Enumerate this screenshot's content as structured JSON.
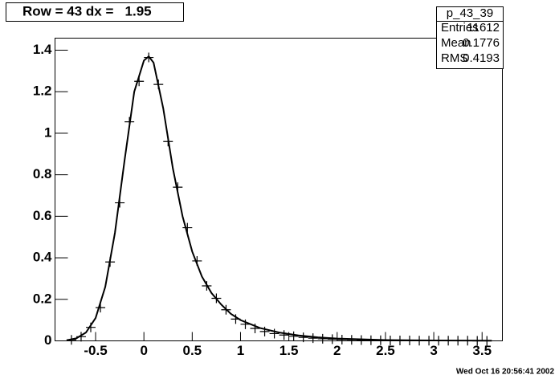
{
  "chart_data": {
    "type": "scatter",
    "title": "Row = 43 dx =   1.95",
    "x": [
      -0.75,
      -0.65,
      -0.55,
      -0.45,
      -0.35,
      -0.25,
      -0.15,
      -0.05,
      0.05,
      0.15,
      0.25,
      0.35,
      0.45,
      0.55,
      0.65,
      0.75,
      0.85,
      0.95,
      1.05,
      1.15,
      1.25,
      1.35,
      1.45,
      1.55,
      1.65,
      1.75,
      1.85,
      1.95,
      2.05,
      2.15,
      2.25,
      2.35,
      2.45,
      2.55,
      2.65,
      2.75,
      2.85,
      2.95,
      3.05,
      3.15,
      3.25,
      3.35,
      3.45,
      3.55
    ],
    "values": [
      0.005,
      0.02,
      0.065,
      0.16,
      0.38,
      0.665,
      1.055,
      1.25,
      1.365,
      1.235,
      0.96,
      0.74,
      0.545,
      0.385,
      0.265,
      0.205,
      0.15,
      0.105,
      0.08,
      0.06,
      0.045,
      0.035,
      0.028,
      0.022,
      0.017,
      0.013,
      0.01,
      0.008,
      0.006,
      0.005,
      0.004,
      0.003,
      0.003,
      0.002,
      0.002,
      0.002,
      0.001,
      0.001,
      0.001,
      0.001,
      0.001,
      0.001,
      0.0,
      0.0
    ],
    "color": "#000000",
    "fit": {
      "x": [
        -0.8,
        -0.7,
        -0.6,
        -0.5,
        -0.4,
        -0.3,
        -0.2,
        -0.1,
        0,
        0.05,
        0.1,
        0.2,
        0.3,
        0.4,
        0.5,
        0.6,
        0.7,
        0.8,
        0.9,
        1.0,
        1.2,
        1.4,
        1.6,
        1.8,
        2.0,
        2.5,
        3.0,
        3.6
      ],
      "values": [
        0.003,
        0.012,
        0.04,
        0.11,
        0.26,
        0.52,
        0.87,
        1.2,
        1.35,
        1.37,
        1.34,
        1.12,
        0.83,
        0.6,
        0.43,
        0.31,
        0.23,
        0.175,
        0.13,
        0.1,
        0.062,
        0.04,
        0.026,
        0.017,
        0.011,
        0.004,
        0.002,
        0.001
      ],
      "color": "#000000"
    },
    "xlim": [
      -0.92,
      3.71
    ],
    "xticks": [
      -0.5,
      0,
      0.5,
      1,
      1.5,
      2,
      2.5,
      3,
      3.5
    ],
    "ylim": [
      0,
      1.458
    ],
    "yticks": [
      0,
      0.2,
      0.4,
      0.6,
      0.8,
      1,
      1.2,
      1.4
    ],
    "stats": {
      "title": "p_43_39",
      "rows": [
        [
          "Entries",
          11612
        ],
        [
          "Mean",
          0.1776
        ],
        [
          "RMS",
          0.4193
        ]
      ]
    },
    "timestamp": "Wed Oct 16 20:56:41 2002"
  }
}
